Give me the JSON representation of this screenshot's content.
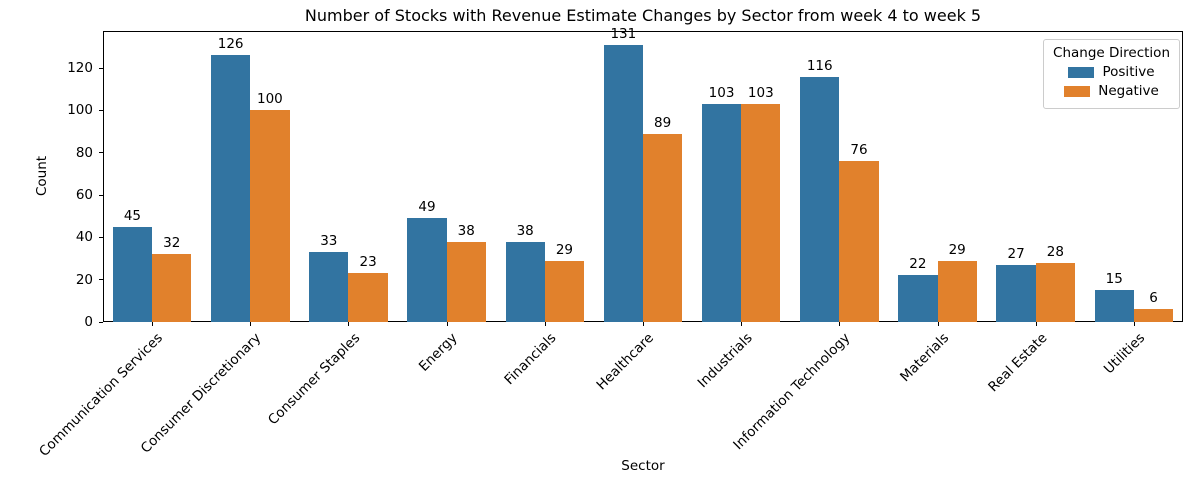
{
  "chart_data": {
    "type": "bar",
    "title": "Number of Stocks with Revenue Estimate Changes by Sector from week 4 to week 5",
    "xlabel": "Sector",
    "ylabel": "Count",
    "categories": [
      "Communication Services",
      "Consumer Discretionary",
      "Consumer Staples",
      "Energy",
      "Financials",
      "Healthcare",
      "Industrials",
      "Information Technology",
      "Materials",
      "Real Estate",
      "Utilities"
    ],
    "series": [
      {
        "name": "Positive",
        "color": "#3274a1",
        "values": [
          45,
          126,
          33,
          49,
          38,
          131,
          103,
          116,
          22,
          27,
          15
        ]
      },
      {
        "name": "Negative",
        "color": "#e1812c",
        "values": [
          32,
          100,
          23,
          38,
          29,
          89,
          103,
          76,
          29,
          28,
          6
        ]
      }
    ],
    "yticks": [
      0,
      20,
      40,
      60,
      80,
      100,
      120
    ],
    "ylim": [
      0,
      137.5
    ],
    "bar_value_labels": true,
    "grid": false,
    "legend": {
      "title": "Change Direction",
      "position": "upper right"
    }
  }
}
